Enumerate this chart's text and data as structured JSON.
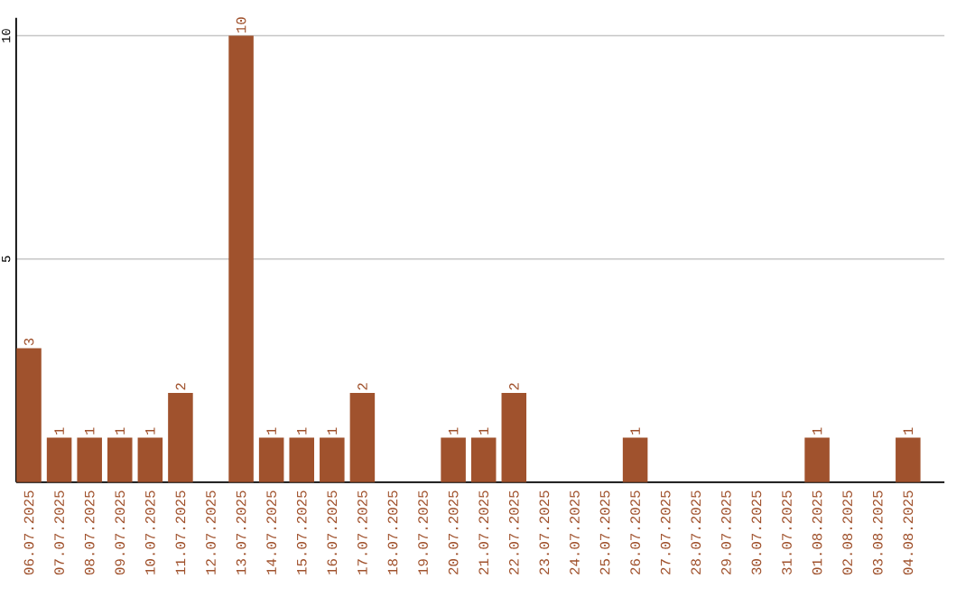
{
  "chart_data": {
    "type": "bar",
    "categories": [
      "06.07.2025",
      "07.07.2025",
      "08.07.2025",
      "09.07.2025",
      "10.07.2025",
      "11.07.2025",
      "12.07.2025",
      "13.07.2025",
      "14.07.2025",
      "15.07.2025",
      "16.07.2025",
      "17.07.2025",
      "18.07.2025",
      "19.07.2025",
      "20.07.2025",
      "21.07.2025",
      "22.07.2025",
      "23.07.2025",
      "24.07.2025",
      "25.07.2025",
      "26.07.2025",
      "27.07.2025",
      "28.07.2025",
      "29.07.2025",
      "30.07.2025",
      "31.07.2025",
      "01.08.2025",
      "02.08.2025",
      "03.08.2025",
      "04.08.2025"
    ],
    "values": [
      3,
      1,
      1,
      1,
      1,
      2,
      0,
      10,
      1,
      1,
      1,
      2,
      0,
      0,
      1,
      1,
      2,
      0,
      0,
      0,
      1,
      0,
      0,
      0,
      0,
      0,
      1,
      0,
      0,
      1
    ],
    "value_labels": [
      "3",
      "1",
      "1",
      "1",
      "1",
      "2",
      null,
      "10",
      "1",
      "1",
      "1",
      "2",
      null,
      null,
      "1",
      "1",
      "2",
      null,
      null,
      null,
      "1",
      null,
      null,
      null,
      null,
      null,
      "1",
      null,
      null,
      "1"
    ],
    "color": "#a0522d",
    "ylim": [
      0,
      10.4
    ],
    "yticks": [
      5,
      10
    ],
    "grid": "y"
  }
}
